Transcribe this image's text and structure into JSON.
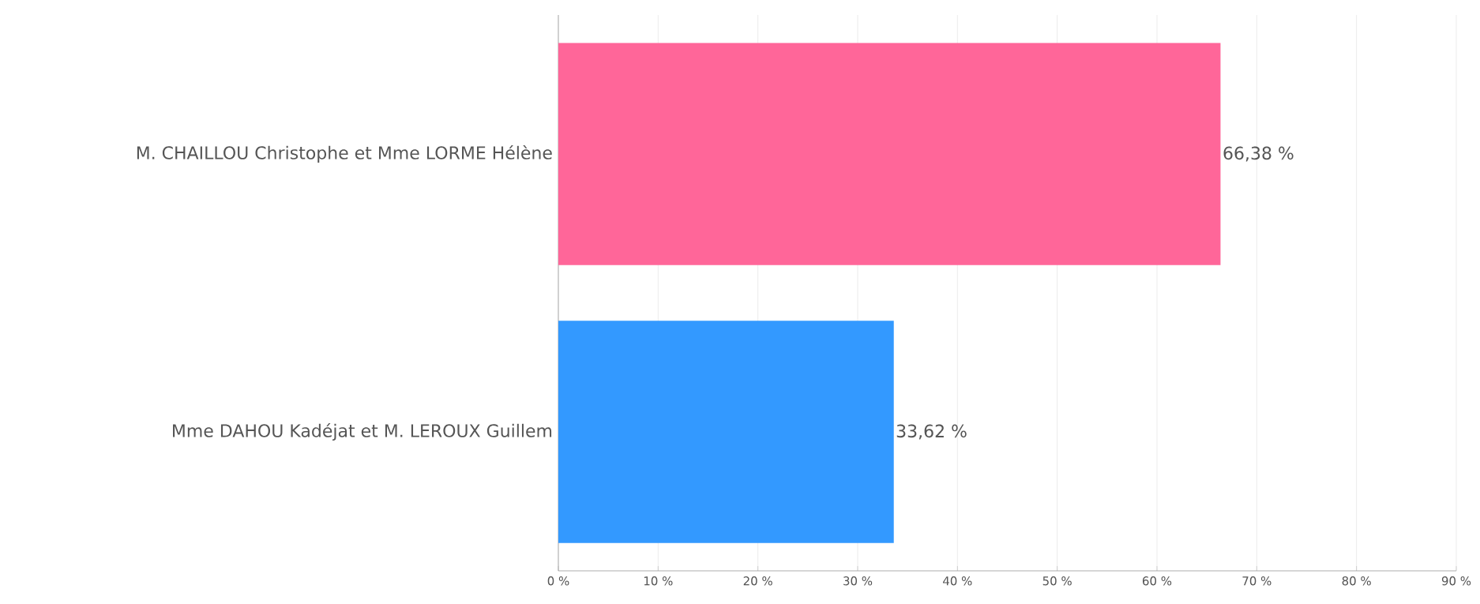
{
  "chart_data": {
    "type": "bar",
    "orientation": "horizontal",
    "categories": [
      "M. CHAILLOU Christophe et Mme LORME Hélène",
      "Mme DAHOU Kadéjat et M. LEROUX Guillem"
    ],
    "values": [
      66.38,
      33.62
    ],
    "colors": [
      "#ff6699",
      "#3399ff"
    ],
    "value_labels": [
      "66,38 %",
      "33,62 %"
    ],
    "xlim": [
      0,
      90
    ],
    "xticks": [
      {
        "value": 0,
        "label": "0 %"
      },
      {
        "value": 10,
        "label": "10 %"
      },
      {
        "value": 20,
        "label": "20 %"
      },
      {
        "value": 30,
        "label": "30 %"
      },
      {
        "value": 40,
        "label": "40 %"
      },
      {
        "value": 50,
        "label": "50 %"
      },
      {
        "value": 60,
        "label": "60 %"
      },
      {
        "value": 70,
        "label": "70 %"
      },
      {
        "value": 80,
        "label": "80 %"
      },
      {
        "value": 90,
        "label": "90 %"
      }
    ],
    "grid": "x"
  }
}
